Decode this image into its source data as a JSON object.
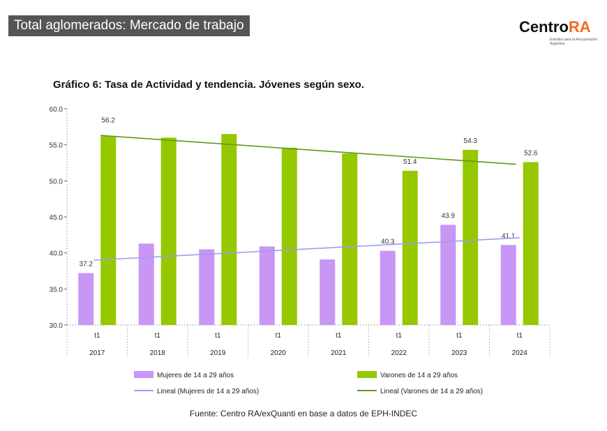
{
  "header": {
    "title": "Total aglomerados: Mercado de trabajo"
  },
  "logo": {
    "text_main": "Centro",
    "text_accent": "RA",
    "tagline": "Estudios para la Recuperación Argentina"
  },
  "colors": {
    "mujeres": "#c896f4",
    "varones": "#96c800",
    "trend_mujeres": "#a09cf0",
    "trend_varones": "#5e9a1a"
  },
  "chart_data": {
    "type": "bar",
    "title": "Gráfico 6: Tasa de Actividad y tendencia. Jóvenes según sexo.",
    "categories": [
      "2017",
      "2018",
      "2019",
      "2020",
      "2021",
      "2022",
      "2023",
      "2024"
    ],
    "sub_categories": [
      "t1",
      "t1",
      "t1",
      "t1",
      "t1",
      "t1",
      "t1",
      "t1"
    ],
    "ylim": [
      30,
      60
    ],
    "yticks": [
      "30.0",
      "35.0",
      "40.0",
      "45.0",
      "50.0",
      "55.0",
      "60.0"
    ],
    "series": [
      {
        "name": "Mujeres de 14 a 29 años",
        "values": [
          37.2,
          41.3,
          40.5,
          40.9,
          39.1,
          40.3,
          43.9,
          41.1
        ],
        "labels": [
          "37.2",
          "",
          "",
          "",
          "",
          "40.3",
          "43.9",
          "41.1"
        ]
      },
      {
        "name": "Varones de 14 a 29 años",
        "values": [
          56.2,
          56.0,
          56.5,
          54.6,
          53.8,
          51.4,
          54.3,
          52.6
        ],
        "labels": [
          "56.2",
          "",
          "",
          "",
          "",
          "51.4",
          "54.3",
          "52.6"
        ]
      }
    ],
    "trendlines": [
      {
        "name": "Lineal (Mujeres de 14 a 29 años)",
        "start": 39.0,
        "end": 42.1
      },
      {
        "name": "Lineal (Varones de 14 a 29 años)",
        "start": 56.3,
        "end": 52.3
      }
    ],
    "legend": "bottom"
  },
  "source": "Fuente: Centro RA/exQuanti en base a datos de EPH-INDEC"
}
